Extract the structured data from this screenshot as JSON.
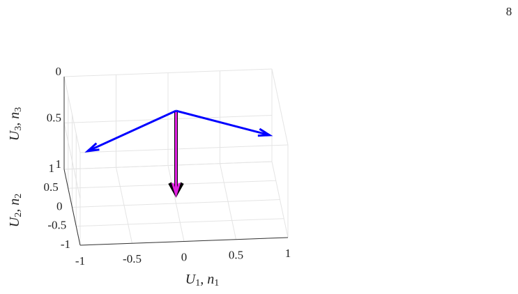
{
  "page_number": "8",
  "chart_data": {
    "type": "quiver3d",
    "xlabel": [
      "U",
      "1",
      ", n",
      "1"
    ],
    "ylabel": [
      "U",
      "2",
      ", n",
      "2"
    ],
    "zlabel": [
      "U",
      "3",
      ", n",
      "3"
    ],
    "xlim": [
      -1,
      1
    ],
    "ylim": [
      -1,
      1
    ],
    "zlim": [
      0,
      1
    ],
    "xticks": [
      -1,
      -0.5,
      0,
      0.5,
      1
    ],
    "yticks": [
      -1,
      -0.5,
      0,
      0.5,
      1
    ],
    "zticks": [
      0,
      0.5,
      1
    ],
    "zdir": "reverse",
    "grid": true,
    "vectors": [
      {
        "color": "#000000",
        "start": [
          0,
          0,
          0
        ],
        "end": [
          0,
          0,
          0.9
        ]
      },
      {
        "color": "#e020e0",
        "start": [
          0,
          0,
          0
        ],
        "end": [
          0,
          0,
          0.9
        ]
      },
      {
        "color": "#0000ff",
        "start": [
          0,
          0,
          0
        ],
        "end": [
          -0.85,
          0,
          0.4
        ]
      },
      {
        "color": "#0000ff",
        "start": [
          0,
          0,
          0
        ],
        "end": [
          0.9,
          0,
          0.3
        ]
      }
    ]
  }
}
